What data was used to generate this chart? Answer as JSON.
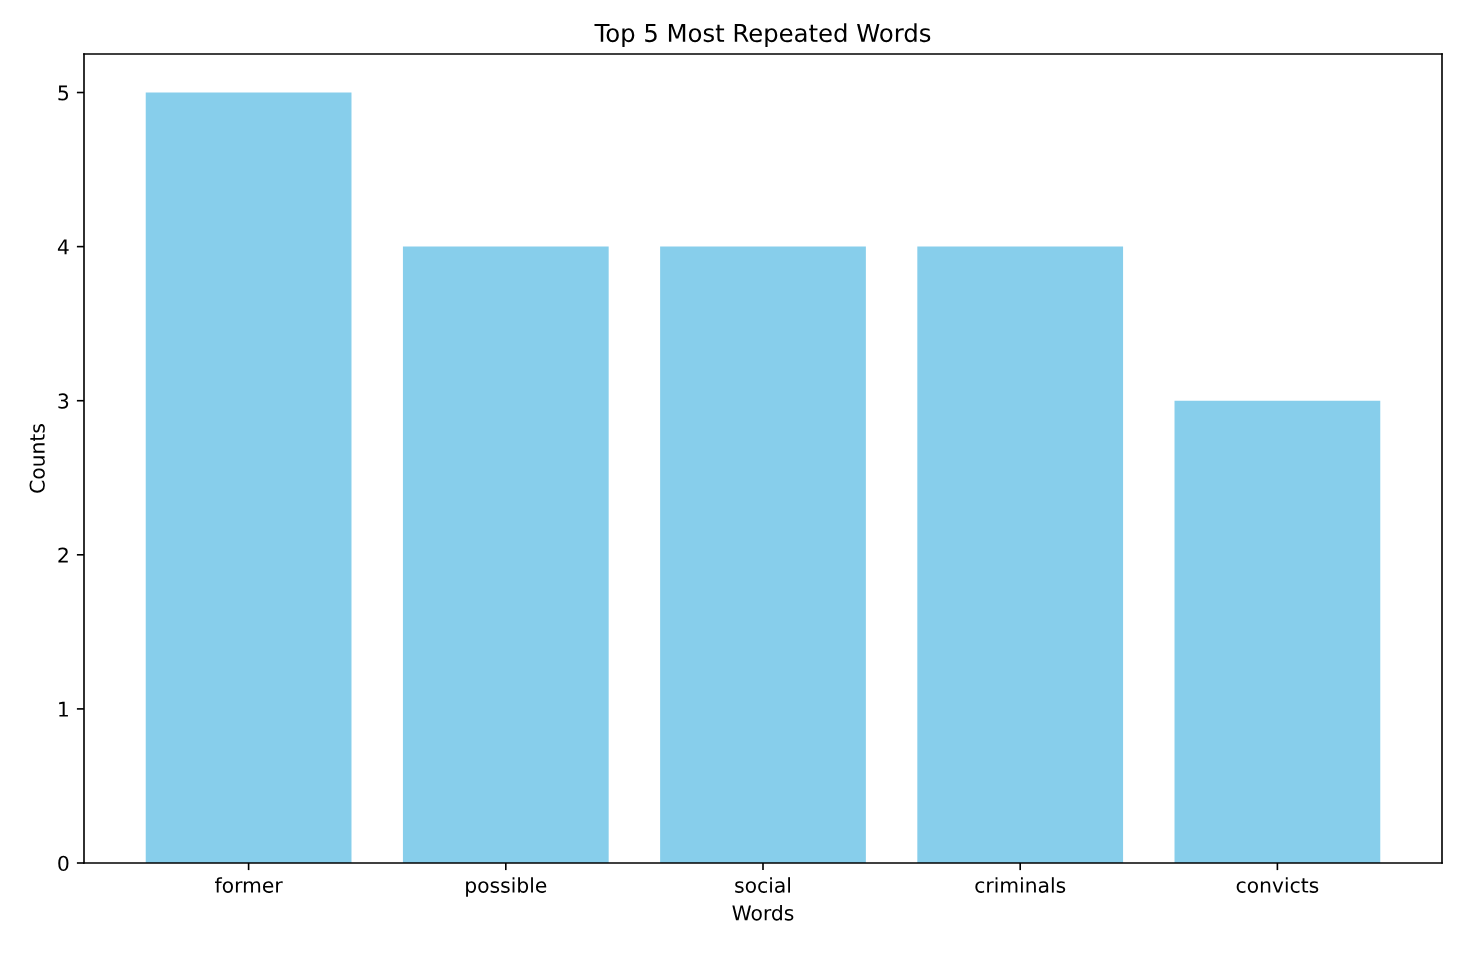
{
  "chart_data": {
    "type": "bar",
    "title": "Top 5 Most Repeated Words",
    "xlabel": "Words",
    "ylabel": "Counts",
    "categories": [
      "former",
      "possible",
      "social",
      "criminals",
      "convicts"
    ],
    "values": [
      5,
      4,
      4,
      4,
      3
    ],
    "color": "#87ceeb",
    "ylim": [
      0,
      5.25
    ],
    "yticks": [
      0,
      1,
      2,
      3,
      4,
      5
    ]
  }
}
